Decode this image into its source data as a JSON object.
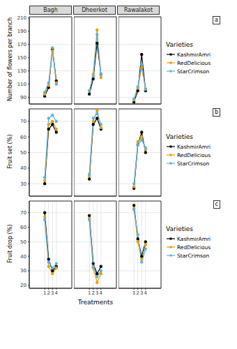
{
  "chart_data": {
    "type": "line",
    "x_label": "Treatments",
    "x": [
      1,
      2,
      3,
      4
    ],
    "xlim": [
      -3,
      8
    ],
    "xticks": [
      1,
      2,
      3,
      4
    ],
    "facet_titles": [
      "Bagh",
      "Dheerkot",
      "Rawalakot"
    ],
    "legend_title": "Varieties",
    "legend": "right",
    "grid": true,
    "panels": [
      {
        "label": "a",
        "y_label": "Number of flowers per branch",
        "ylim": [
          80,
          212
        ],
        "yticks": [
          90,
          110,
          130,
          150,
          170,
          190,
          210
        ],
        "series": [
          {
            "name": "KashmirAmri",
            "color": "#000000",
            "marker": "circle",
            "values": [
              [
                92,
                105,
                163,
                115
              ],
              [
                95,
                118,
                172,
                125
              ],
              [
                83,
                100,
                155,
                100
              ]
            ]
          },
          {
            "name": "RedDelicious",
            "color": "#E69F00",
            "marker": "circle",
            "values": [
              [
                95,
                108,
                160,
                112
              ],
              [
                100,
                125,
                192,
                120
              ],
              [
                86,
                104,
                135,
                103
              ]
            ]
          },
          {
            "name": "StarCrimson",
            "color": "#56B4E9",
            "marker": "circle",
            "values": [
              [
                98,
                112,
                165,
                110
              ],
              [
                100,
                122,
                185,
                125
              ],
              [
                88,
                106,
                140,
                102
              ]
            ]
          }
        ]
      },
      {
        "label": "b",
        "y_label": "Fruit set (%)",
        "ylim": [
          22,
          78
        ],
        "yticks": [
          30,
          40,
          50,
          60,
          70
        ],
        "series": [
          {
            "name": "KashmirAmri",
            "color": "#000000",
            "marker": "circle",
            "values": [
              [
                30,
                65,
                68,
                63
              ],
              [
                33,
                68,
                72,
                65
              ],
              [
                27,
                55,
                63,
                50
              ]
            ]
          },
          {
            "name": "RedDelicious",
            "color": "#E69F00",
            "marker": "circle",
            "values": [
              [
                32,
                68,
                70,
                65
              ],
              [
                35,
                70,
                77,
                66
              ],
              [
                28,
                57,
                60,
                52
              ]
            ]
          },
          {
            "name": "StarCrimson",
            "color": "#56B4E9",
            "marker": "circle",
            "values": [
              [
                34,
                72,
                74,
                70
              ],
              [
                36,
                72,
                75,
                68
              ],
              [
                30,
                55,
                58,
                53
              ]
            ]
          }
        ]
      },
      {
        "label": "c",
        "y_label": "Fruit drop (%)",
        "ylim": [
          18,
          78
        ],
        "yticks": [
          20,
          30,
          40,
          50,
          60,
          70
        ],
        "series": [
          {
            "name": "KashmirAmri",
            "color": "#000000",
            "marker": "circle",
            "values": [
              [
                70,
                38,
                30,
                33
              ],
              [
                68,
                35,
                28,
                33
              ],
              [
                75,
                52,
                40,
                50
              ]
            ]
          },
          {
            "name": "RedDelicious",
            "color": "#E69F00",
            "marker": "circle",
            "values": [
              [
                67,
                33,
                28,
                32
              ],
              [
                66,
                32,
                22,
                28
              ],
              [
                73,
                50,
                38,
                48
              ]
            ]
          },
          {
            "name": "StarCrimson",
            "color": "#56B4E9",
            "marker": "circle",
            "values": [
              [
                65,
                36,
                32,
                35
              ],
              [
                65,
                33,
                26,
                30
              ],
              [
                72,
                55,
                36,
                45
              ]
            ]
          }
        ]
      }
    ]
  }
}
